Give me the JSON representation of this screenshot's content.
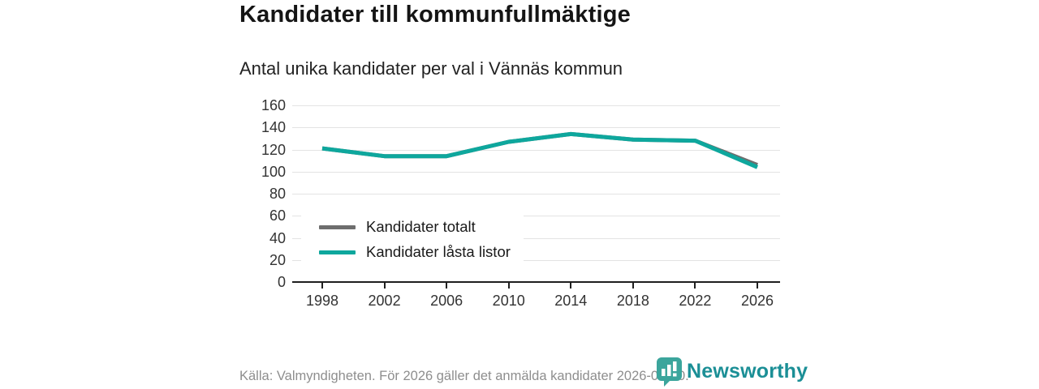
{
  "title": "Kandidater till kommunfullmäktige",
  "subtitle": "Antal unika kandidater per val i Vännäs kommun",
  "footer": {
    "source": "Källa: Valmyndigheten. För 2026 gäller det anmälda kandidater 2026-04-10."
  },
  "brand": {
    "name": "Newsworthy",
    "icon_color": "#3ba59c",
    "text_color": "#1b8f96"
  },
  "colors": {
    "accent_teal": "#0ea79d",
    "series_gray": "#6e6e6e",
    "gridline": "#e3e3e3",
    "axis": "#1f1f1f"
  },
  "chart_data": {
    "type": "line",
    "title": "Kandidater till kommunfullmäktige",
    "subtitle": "Antal unika kandidater per val i Vännäs kommun",
    "x": [
      1998,
      2002,
      2006,
      2010,
      2014,
      2018,
      2022,
      2026
    ],
    "series": [
      {
        "name": "Kandidater totalt",
        "color": "#6e6e6e",
        "values": [
          121,
          114,
          114,
          127,
          134,
          129,
          128,
          106
        ]
      },
      {
        "name": "Kandidater låsta listor",
        "color": "#0ea79d",
        "values": [
          121,
          114,
          114,
          127,
          134,
          129,
          128,
          104
        ]
      }
    ],
    "xlabel": "",
    "ylabel": "",
    "ylim": [
      0,
      160
    ],
    "yticks": [
      0,
      20,
      40,
      60,
      80,
      100,
      120,
      140,
      160
    ],
    "grid": true,
    "legend_position": "inside-center-left"
  }
}
